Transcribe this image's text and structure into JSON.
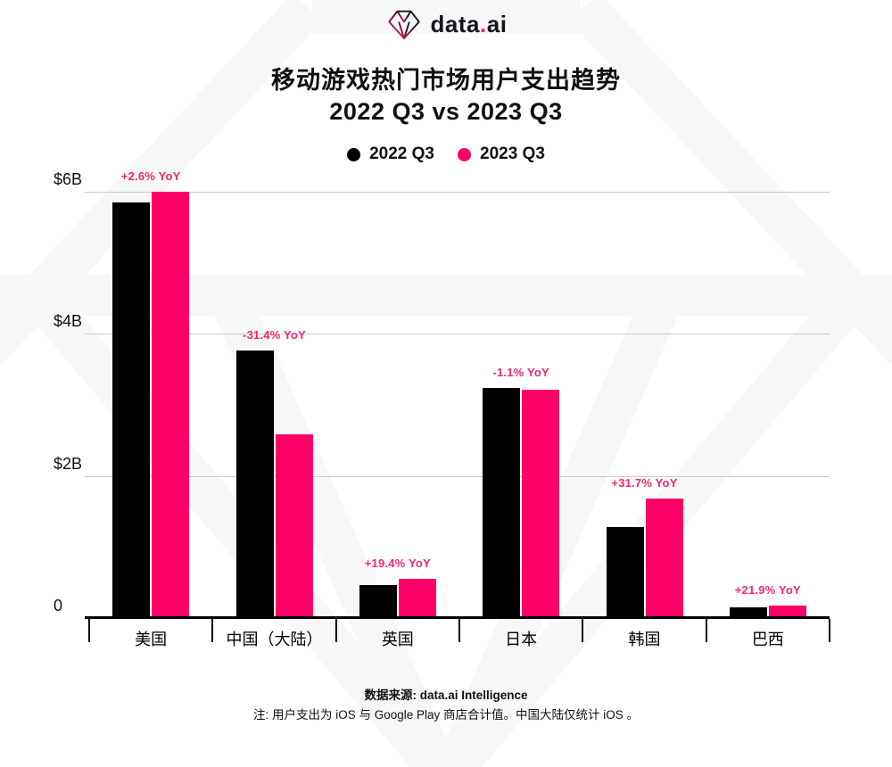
{
  "header": {
    "logo_prefix": "data",
    "logo_dot": ".",
    "logo_suffix": "ai"
  },
  "title": {
    "line1": "移动游戏热门市场用户支出趋势",
    "line2": "2022 Q3 vs 2023 Q3"
  },
  "legend": [
    {
      "label": "2022 Q3",
      "color": "#000000"
    },
    {
      "label": "2023 Q3",
      "color": "#ff0066"
    }
  ],
  "chart_data": {
    "type": "bar",
    "title": "移动游戏热门市场用户支出趋势 2022 Q3 vs 2023 Q3",
    "unit": "USD billions (user spend per quarter)",
    "categories": [
      "美国",
      "中国（大陆）",
      "英国",
      "日本",
      "韩国",
      "巴西"
    ],
    "series": [
      {
        "name": "2022 Q3",
        "color": "#000000",
        "values": [
          5.85,
          3.77,
          0.46,
          3.24,
          1.28,
          0.15
        ]
      },
      {
        "name": "2023 Q3",
        "color": "#ff0066",
        "values": [
          6.0,
          2.59,
          0.55,
          3.21,
          1.68,
          0.18
        ]
      }
    ],
    "yoy_labels": [
      "+2.6% YoY",
      "-31.4% YoY",
      "+19.4% YoY",
      "-1.1% YoY",
      "+31.7% YoY",
      "+21.9% YoY"
    ],
    "ylim": [
      0,
      6
    ],
    "yticks": [
      {
        "label": "$6B",
        "value": 6
      },
      {
        "label": "$4B",
        "value": 4
      },
      {
        "label": "$2B",
        "value": 2
      },
      {
        "label": "0",
        "value": 0
      }
    ],
    "grid": "horizontal",
    "legend_position": "top"
  },
  "colors": {
    "accent_pink": "#ff0066",
    "yoy_label_pink": "#f4256e",
    "bar_black": "#000000",
    "gridline": "#cbcbcb",
    "watermark": "#f7f7f7"
  },
  "footer": {
    "source": "数据来源: data.ai Intelligence",
    "note": "注: 用户支出为 iOS 与 Google Play 商店合计值。中国大陆仅统计 iOS 。"
  }
}
